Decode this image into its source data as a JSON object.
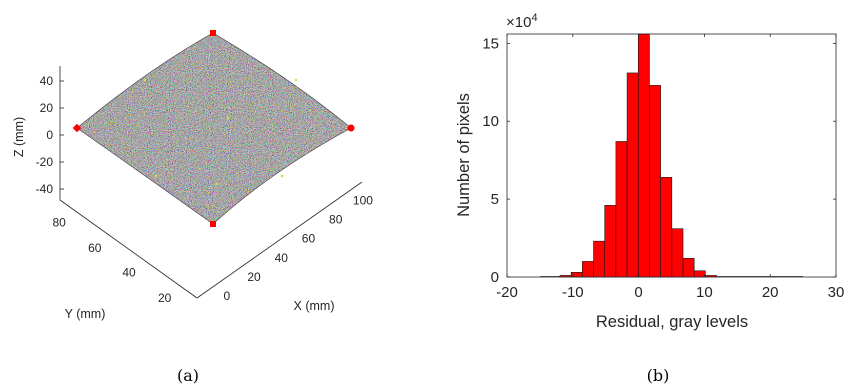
{
  "chart_data": [
    {
      "type": "surface3d",
      "xlabel": "X (mm)",
      "ylabel": "Y (mm)",
      "zlabel": "Z (mm)",
      "x_ticks": [
        "0",
        "20",
        "40",
        "60",
        "80",
        "100"
      ],
      "y_ticks": [
        "20",
        "40",
        "60",
        "80"
      ],
      "z_ticks": [
        "40",
        "20",
        "0",
        "-20",
        "-40"
      ],
      "surface_color": "#8a8a8a",
      "marker_color": "#ff0000",
      "caption": "(a)"
    },
    {
      "type": "bar",
      "xlabel": "Residual, gray levels",
      "ylabel": "Number of pixels",
      "y_exponent": "×10",
      "y_exponent_power": "4",
      "xlim": [
        -20,
        30
      ],
      "ylim": [
        0,
        15.6
      ],
      "x_ticks": [
        "-20",
        "-10",
        "0",
        "10",
        "20",
        "30"
      ],
      "y_ticks": [
        "0",
        "5",
        "10",
        "15"
      ],
      "bin_width": 1.7,
      "bins": [
        {
          "x": -11.1,
          "value": 0.1
        },
        {
          "x": -9.4,
          "value": 0.3
        },
        {
          "x": -7.7,
          "value": 1.0
        },
        {
          "x": -6.0,
          "value": 2.3
        },
        {
          "x": -4.3,
          "value": 4.6
        },
        {
          "x": -2.6,
          "value": 8.7
        },
        {
          "x": -0.9,
          "value": 13.1
        },
        {
          "x": 0.8,
          "value": 15.6
        },
        {
          "x": 2.5,
          "value": 12.3
        },
        {
          "x": 4.2,
          "value": 6.4
        },
        {
          "x": 5.9,
          "value": 3.1
        },
        {
          "x": 7.6,
          "value": 1.2
        },
        {
          "x": 9.3,
          "value": 0.4
        },
        {
          "x": 11.0,
          "value": 0.1
        }
      ],
      "bar_color": "#ff0000",
      "caption": "(b)"
    }
  ]
}
